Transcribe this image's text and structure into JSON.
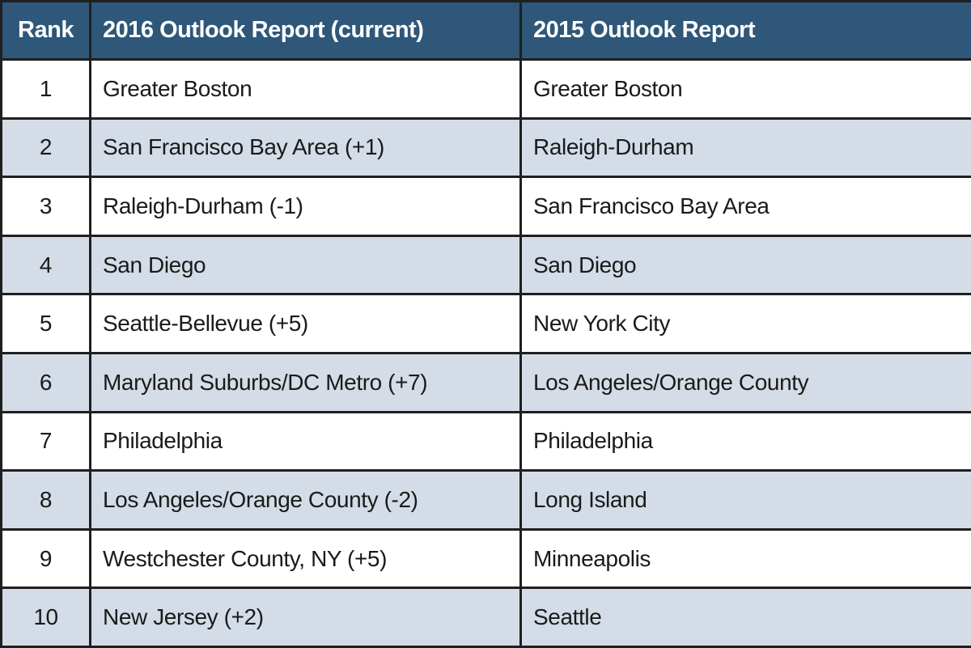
{
  "header": {
    "rank": "Rank",
    "col_2016": "2016 Outlook Report (current)",
    "col_2015": "2015 Outlook Report"
  },
  "rows": [
    {
      "rank": "1",
      "y2016": "Greater Boston",
      "y2015": "Greater Boston"
    },
    {
      "rank": "2",
      "y2016": "San Francisco Bay Area (+1)",
      "y2015": "Raleigh-Durham"
    },
    {
      "rank": "3",
      "y2016": "Raleigh-Durham (-1)",
      "y2015": "San Francisco Bay Area"
    },
    {
      "rank": "4",
      "y2016": "San Diego",
      "y2015": "San Diego"
    },
    {
      "rank": "5",
      "y2016": "Seattle-Bellevue (+5)",
      "y2015": "New York City"
    },
    {
      "rank": "6",
      "y2016": "Maryland Suburbs/DC Metro (+7)",
      "y2015": "Los Angeles/Orange County"
    },
    {
      "rank": "7",
      "y2016": "Philadelphia",
      "y2015": "Philadelphia"
    },
    {
      "rank": "8",
      "y2016": "Los Angeles/Orange County (-2)",
      "y2015": "Long Island"
    },
    {
      "rank": "9",
      "y2016": "Westchester County, NY (+5)",
      "y2015": "Minneapolis"
    },
    {
      "rank": "10",
      "y2016": "New Jersey (+2)",
      "y2015": "Seattle"
    }
  ],
  "colors": {
    "header_bg": "#2e5779",
    "header_text": "#ffffff",
    "row_alt_bg": "#d4dce7",
    "border": "#1f1f1f"
  }
}
